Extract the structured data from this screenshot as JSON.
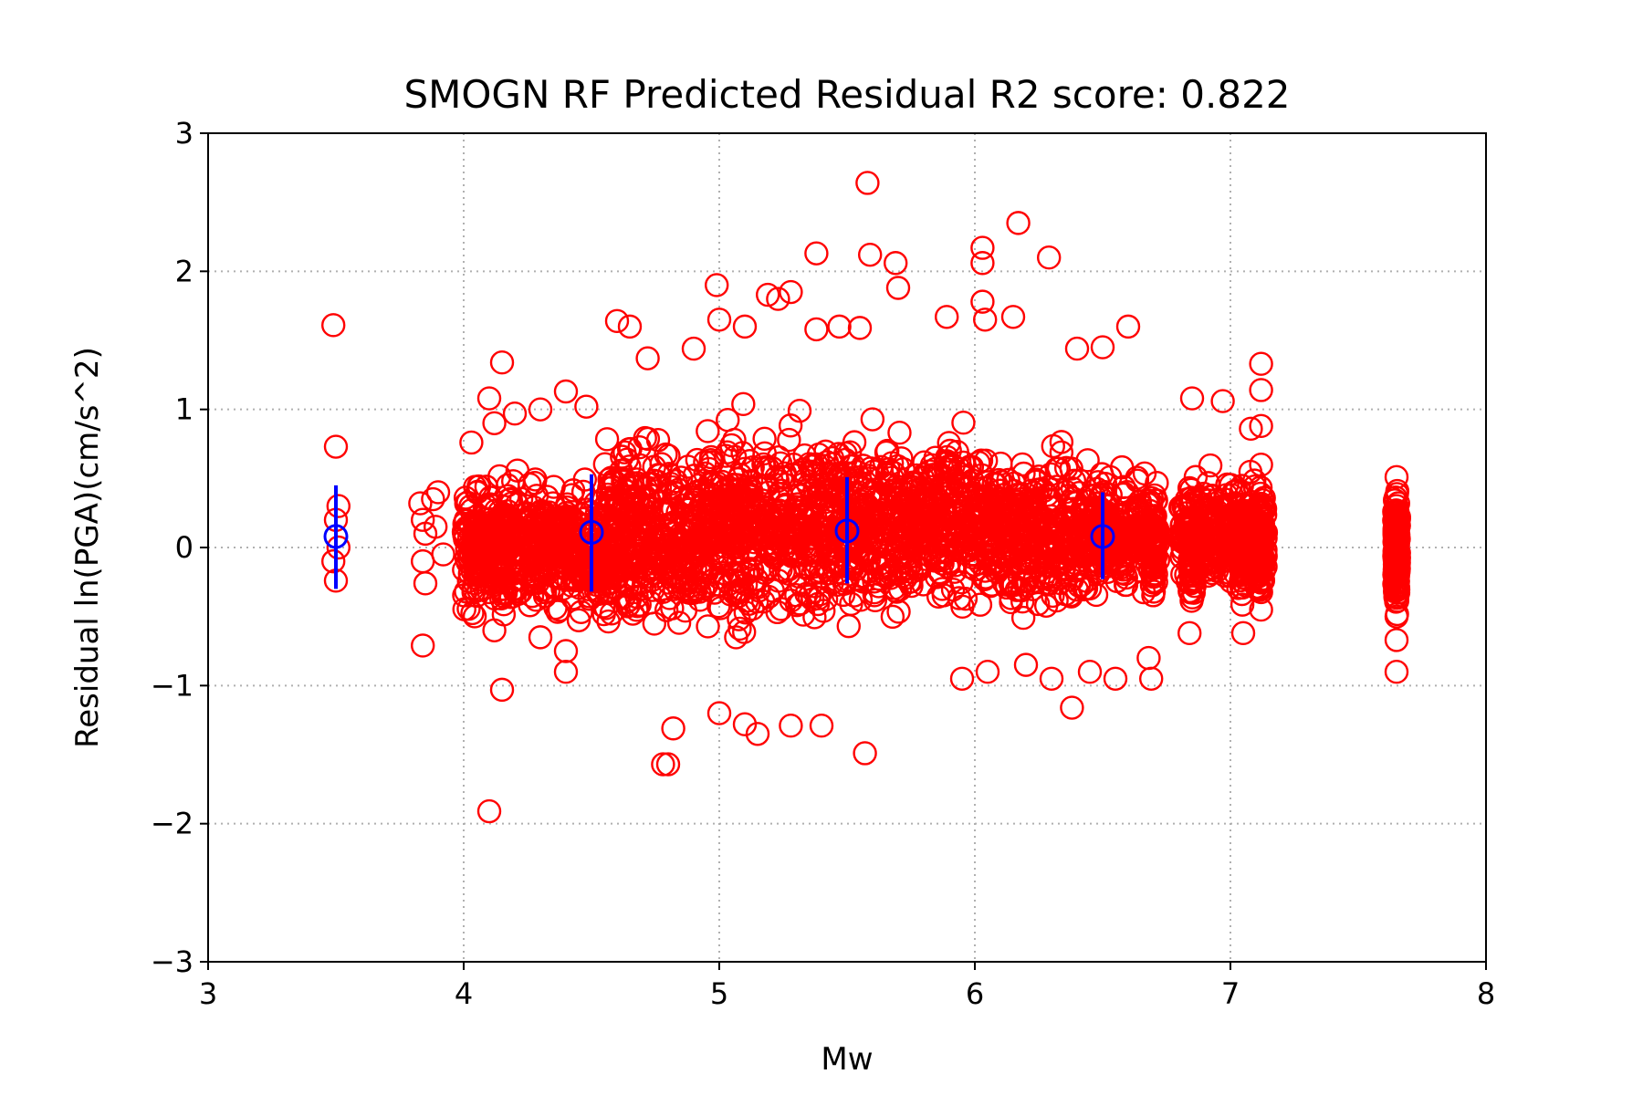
{
  "chart_data": {
    "type": "scatter",
    "title": "SMOGN RF Predicted Residual R2 score: 0.822",
    "xlabel": "Mw",
    "ylabel": "Residual ln(PGA)(cm/s^2)",
    "xlim": [
      3,
      8
    ],
    "ylim": [
      -3,
      3
    ],
    "grid": true,
    "x_ticks": [
      3,
      4,
      5,
      6,
      7,
      8
    ],
    "x_tick_labels": [
      "3",
      "4",
      "5",
      "6",
      "7",
      "8"
    ],
    "y_ticks": [
      -3,
      -2,
      -1,
      0,
      1,
      2,
      3
    ],
    "y_tick_labels": [
      "−3",
      "−2",
      "−1",
      "0",
      "1",
      "2",
      "3"
    ],
    "series": [
      {
        "marker": "open-circle",
        "color": "#ff0000",
        "points": [
          [
            3.49,
            1.61
          ],
          [
            3.5,
            0.73
          ],
          [
            3.51,
            0.3
          ],
          [
            3.5,
            0.2
          ],
          [
            3.49,
            -0.1
          ],
          [
            3.5,
            -0.24
          ],
          [
            3.51,
            0.0
          ],
          [
            3.83,
            0.32
          ],
          [
            3.84,
            0.2
          ],
          [
            3.85,
            0.1
          ],
          [
            3.84,
            -0.1
          ],
          [
            3.85,
            -0.26
          ],
          [
            3.84,
            -0.71
          ],
          [
            3.88,
            0.35
          ],
          [
            3.89,
            0.15
          ],
          [
            3.9,
            0.4
          ],
          [
            3.92,
            -0.05
          ],
          [
            4.03,
            0.76
          ],
          [
            4.1,
            1.08
          ],
          [
            4.12,
            0.9
          ],
          [
            4.15,
            1.34
          ],
          [
            4.2,
            0.97
          ],
          [
            4.3,
            1.0
          ],
          [
            4.4,
            1.13
          ],
          [
            4.48,
            1.02
          ],
          [
            4.05,
            -0.35
          ],
          [
            4.12,
            -0.6
          ],
          [
            4.15,
            -1.03
          ],
          [
            4.1,
            -1.91
          ],
          [
            4.4,
            -0.9
          ],
          [
            4.4,
            -0.75
          ],
          [
            4.3,
            -0.65
          ],
          [
            4.6,
            1.64
          ],
          [
            4.65,
            1.6
          ],
          [
            4.72,
            1.37
          ],
          [
            4.9,
            1.44
          ],
          [
            4.99,
            1.9
          ],
          [
            5.0,
            1.65
          ],
          [
            5.1,
            1.6
          ],
          [
            5.19,
            1.83
          ],
          [
            5.23,
            1.8
          ],
          [
            5.28,
            1.85
          ],
          [
            4.78,
            -1.57
          ],
          [
            4.8,
            -1.57
          ],
          [
            4.82,
            -1.31
          ],
          [
            5.0,
            -1.2
          ],
          [
            5.1,
            -1.28
          ],
          [
            5.15,
            -1.35
          ],
          [
            5.28,
            -1.29
          ],
          [
            5.4,
            -1.29
          ],
          [
            5.57,
            -1.49
          ],
          [
            5.38,
            2.13
          ],
          [
            5.58,
            2.64
          ],
          [
            5.59,
            2.12
          ],
          [
            5.69,
            2.06
          ],
          [
            5.7,
            1.88
          ],
          [
            5.55,
            1.59
          ],
          [
            5.47,
            1.6
          ],
          [
            5.38,
            1.58
          ],
          [
            5.89,
            1.67
          ],
          [
            6.03,
            2.17
          ],
          [
            6.03,
            2.06
          ],
          [
            6.03,
            1.78
          ],
          [
            6.04,
            1.65
          ],
          [
            6.15,
            1.67
          ],
          [
            6.17,
            2.35
          ],
          [
            6.29,
            2.1
          ],
          [
            6.4,
            1.44
          ],
          [
            6.5,
            1.45
          ],
          [
            6.6,
            1.6
          ],
          [
            5.95,
            -0.95
          ],
          [
            6.05,
            -0.9
          ],
          [
            6.2,
            -0.85
          ],
          [
            6.3,
            -0.95
          ],
          [
            6.38,
            -1.16
          ],
          [
            6.45,
            -0.9
          ],
          [
            6.55,
            -0.95
          ],
          [
            6.69,
            -0.95
          ],
          [
            6.68,
            -0.8
          ],
          [
            6.85,
            1.08
          ],
          [
            6.97,
            1.06
          ],
          [
            7.08,
            0.86
          ],
          [
            7.12,
            1.33
          ],
          [
            7.12,
            1.14
          ],
          [
            7.12,
            0.88
          ],
          [
            7.12,
            0.6
          ],
          [
            6.84,
            -0.62
          ],
          [
            7.05,
            -0.62
          ],
          [
            7.12,
            -0.45
          ],
          [
            7.65,
            0.51
          ],
          [
            7.65,
            0.3
          ],
          [
            7.65,
            0.1
          ],
          [
            7.65,
            -0.2
          ],
          [
            7.65,
            -0.5
          ],
          [
            7.65,
            -0.67
          ],
          [
            7.65,
            -0.9
          ]
        ]
      },
      {
        "marker": "open-circle-errorbar",
        "color": "#0000ff",
        "points": [
          {
            "x": 3.5,
            "y": 0.08,
            "yerr_low": -0.3,
            "yerr_high": 0.45
          },
          {
            "x": 4.5,
            "y": 0.11,
            "yerr_low": -0.32,
            "yerr_high": 0.53
          },
          {
            "x": 5.5,
            "y": 0.12,
            "yerr_low": -0.26,
            "yerr_high": 0.51
          },
          {
            "x": 6.5,
            "y": 0.08,
            "yerr_low": -0.23,
            "yerr_high": 0.4
          }
        ]
      }
    ],
    "dense_regions": [
      {
        "x_range": [
          4.0,
          4.6
        ],
        "y_center": 0.0,
        "y_spread": 0.38
      },
      {
        "x_range": [
          4.55,
          4.95
        ],
        "y_center": 0.1,
        "y_spread": 0.5
      },
      {
        "x_range": [
          4.95,
          5.45
        ],
        "y_center": 0.15,
        "y_spread": 0.55
      },
      {
        "x_range": [
          5.45,
          5.75
        ],
        "y_center": 0.15,
        "y_spread": 0.5
      },
      {
        "x_range": [
          5.75,
          6.05
        ],
        "y_center": 0.2,
        "y_spread": 0.45
      },
      {
        "x_range": [
          6.05,
          6.45
        ],
        "y_center": 0.1,
        "y_spread": 0.42
      },
      {
        "x_range": [
          6.45,
          6.72
        ],
        "y_center": 0.1,
        "y_spread": 0.35
      },
      {
        "x_range": [
          6.8,
          7.14
        ],
        "y_center": 0.1,
        "y_spread": 0.3
      }
    ]
  }
}
